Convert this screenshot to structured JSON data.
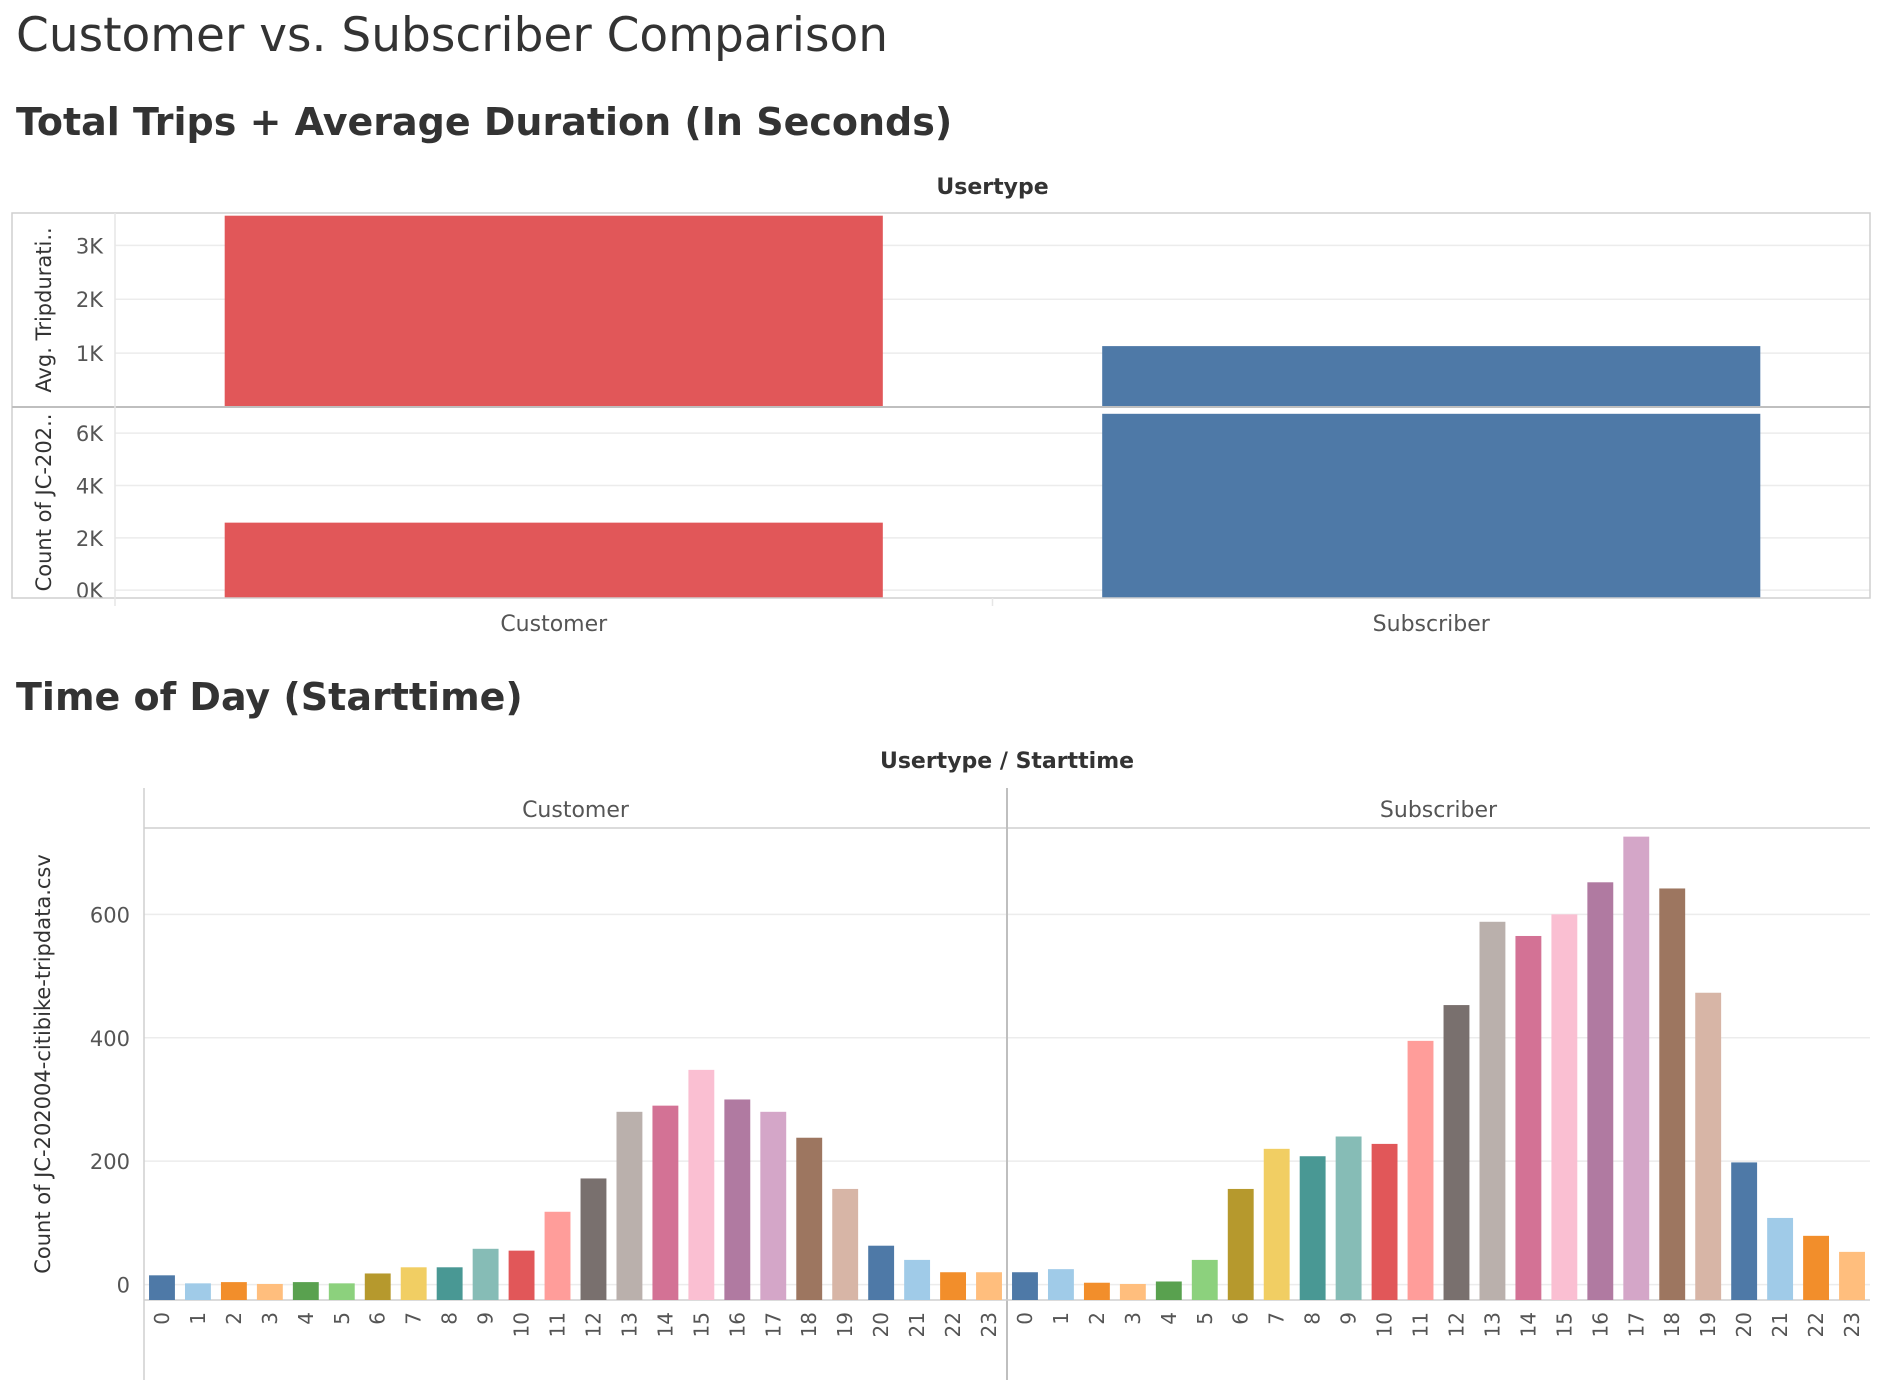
{
  "dashboard_title": "Customer vs. Subscriber Comparison",
  "section1_title": "Total Trips + Average Duration (In Seconds)",
  "section2_title": "Time of Day (Starttime)",
  "chart_data": [
    {
      "type": "bar",
      "header": "Usertype",
      "categories": [
        "Customer",
        "Subscriber"
      ],
      "colors": [
        "#e15759",
        "#4e79a7"
      ],
      "panels": [
        {
          "ylabel": "Avg. Tripdurati..",
          "values": [
            3550,
            1130
          ],
          "ylim": [
            0,
            3600
          ],
          "ticks": [
            1000,
            2000,
            3000
          ],
          "tick_labels": [
            "1K",
            "2K",
            "3K"
          ]
        },
        {
          "ylabel": "Count of JC-202..",
          "values": [
            2580,
            6740
          ],
          "ylim": [
            -300,
            7000
          ],
          "ticks": [
            0,
            2000,
            4000,
            6000
          ],
          "tick_labels": [
            "0K",
            "2K",
            "4K",
            "6K"
          ]
        }
      ],
      "grid": true
    },
    {
      "type": "bar",
      "header": "Usertype / Starttime",
      "ylabel": "Count of JC-202004-citibike-tripdata.csv",
      "ylim": [
        -25,
        740
      ],
      "yticks": [
        0,
        200,
        400,
        600
      ],
      "categories": [
        "0",
        "1",
        "2",
        "3",
        "4",
        "5",
        "6",
        "7",
        "8",
        "9",
        "10",
        "11",
        "12",
        "13",
        "14",
        "15",
        "16",
        "17",
        "18",
        "19",
        "20",
        "21",
        "22",
        "23"
      ],
      "colors": [
        "#4e79a7",
        "#a0cbe8",
        "#f28e2b",
        "#ffbe7d",
        "#59a14f",
        "#8cd17d",
        "#b6992d",
        "#f1ce63",
        "#499894",
        "#86bcb6",
        "#e15759",
        "#ff9d9a",
        "#79706e",
        "#bab0ac",
        "#d37295",
        "#fabfd2",
        "#b07aa1",
        "#d4a6c8",
        "#9d7660",
        "#d7b5a6",
        "#4e79a7",
        "#a0cbe8",
        "#f28e2b",
        "#ffbe7d"
      ],
      "series": [
        {
          "name": "Customer",
          "values": [
            15,
            2,
            4,
            1,
            4,
            2,
            18,
            28,
            28,
            58,
            55,
            118,
            172,
            280,
            290,
            348,
            300,
            280,
            238,
            155,
            63,
            40,
            20,
            20
          ]
        },
        {
          "name": "Subscriber",
          "values": [
            20,
            25,
            3,
            1,
            5,
            40,
            155,
            220,
            208,
            240,
            228,
            395,
            453,
            588,
            565,
            600,
            652,
            726,
            642,
            473,
            198,
            108,
            79,
            53
          ]
        }
      ],
      "grid": true
    }
  ]
}
